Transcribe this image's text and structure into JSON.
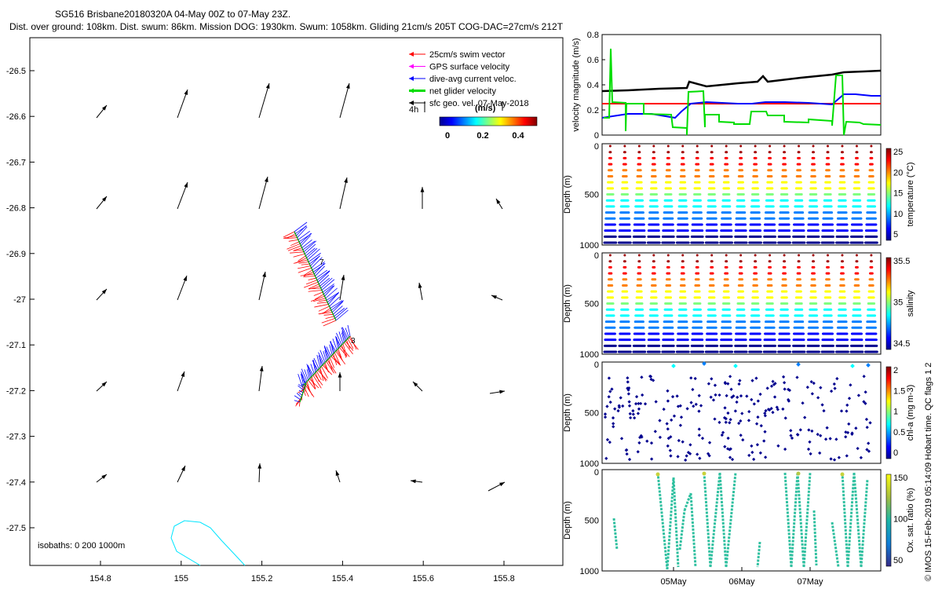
{
  "title": {
    "line1": "SG516 Brisbane20180320A 04-May 00Z to 07-May 23Z.",
    "line2": "Dist. over ground: 108km. Dist. swum: 86km. Mission DOG: 1930km. Swum: 1058km. Gliding 21cm/s 205T COG-DAC=27cm/s 212T"
  },
  "map": {
    "lat_ticks": [
      "-26.5",
      "-26.6",
      "-26.7",
      "-26.8",
      "-26.9",
      "-27",
      "-27.1",
      "-27.2",
      "-27.3",
      "-27.4",
      "-27.5"
    ],
    "lon_ticks": [
      "154.8",
      "155",
      "155.2",
      "155.4",
      "155.6",
      "155.8"
    ],
    "legend": [
      {
        "label": "25cm/s swim vector",
        "color": "#ff0000"
      },
      {
        "label": "GPS surface velocity",
        "color": "#ff00ff"
      },
      {
        "label": "dive-avg current veloc.",
        "color": "#0000ff"
      },
      {
        "label": "net glider velocity",
        "color": "#00dd00"
      },
      {
        "label": "sfc geo. vel. 07-May-2018",
        "color": "#000000"
      }
    ],
    "hours_label": "4h",
    "colorbar_title": "(m/s)",
    "colorbar_ticks": [
      "0",
      "0.2",
      "0.4"
    ],
    "isobaths_label": "isobaths: 0   200  1000m",
    "track_mark_a": "7",
    "track_mark_b": "3"
  },
  "panels": {
    "velocity": {
      "ylabel": "velocity magnitude (m/s)",
      "yticks": [
        "0",
        "0.2",
        "0.4",
        "0.6",
        "0.8"
      ],
      "threshold_color": "#ff0000"
    },
    "temperature": {
      "ylabel": "Depth (m)",
      "cblabel": "temperature (°C)",
      "cbticks": [
        "5",
        "10",
        "15",
        "20",
        "25"
      ],
      "depth_ticks": [
        "0",
        "500",
        "1000"
      ]
    },
    "salinity": {
      "ylabel": "Depth (m)",
      "cblabel": "salinity",
      "cbticks": [
        "34.5",
        "35",
        "35.5"
      ],
      "depth_ticks": [
        "0",
        "500",
        "1000"
      ]
    },
    "chla": {
      "ylabel": "Depth (m)",
      "cblabel": "chl-a (mg m-3)",
      "cbticks": [
        "0",
        "0.5",
        "1",
        "1.5",
        "2"
      ],
      "depth_ticks": [
        "0",
        "500",
        "1000"
      ]
    },
    "oxygen": {
      "ylabel": "Depth (m)",
      "cblabel": "Ox. sat. ratio (%)",
      "cbticks": [
        "50",
        "100",
        "150"
      ],
      "depth_ticks": [
        "0",
        "500",
        "1000"
      ]
    },
    "date_ticks": [
      "05May",
      "06May",
      "07May"
    ]
  },
  "qc_label": "QC flags 1  2",
  "credit": "© IMOS 15-Feb-2019 05:14:09 Hobart time."
}
